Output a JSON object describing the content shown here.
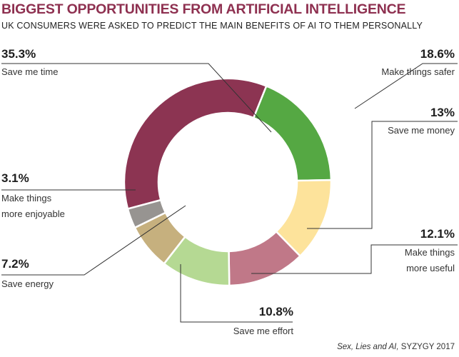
{
  "title": "BIGGEST OPPORTUNITIES FROM ARTIFICIAL INTELLIGENCE",
  "subtitle": "UK CONSUMERS WERE ASKED TO PREDICT THE MAIN BENEFITS OF AI TO THEM PERSONALLY",
  "source_italic": "Sex, Lies and AI,",
  "source_rest": " SYZYGY 2017",
  "chart_data": {
    "type": "pie",
    "donut": true,
    "unit": "%",
    "slices": [
      {
        "label": "Save me time",
        "value": 35.3,
        "display": "35.3%",
        "color": "#8c3452"
      },
      {
        "label": "Make things safer",
        "value": 18.6,
        "display": "18.6%",
        "color": "#55a843"
      },
      {
        "label": "Save me money",
        "value": 13,
        "display": "13%",
        "color": "#fde39b"
      },
      {
        "label": "Make things more useful",
        "value": 12.1,
        "display": "12.1%",
        "color": "#c07888"
      },
      {
        "label": "Save me effort",
        "value": 10.8,
        "display": "10.8%",
        "color": "#b5d993"
      },
      {
        "label": "Save energy",
        "value": 7.2,
        "display": "7.2%",
        "color": "#c6b07e"
      },
      {
        "label": "Make things more enjoyable",
        "value": 3.1,
        "display": "3.1%",
        "color": "#979491"
      }
    ]
  },
  "labels": {
    "time": {
      "pct": "35.3%",
      "line1": "Save me time"
    },
    "safer": {
      "pct": "18.6%",
      "line1": "Make things safer"
    },
    "money": {
      "pct": "13%",
      "line1": "Save me money"
    },
    "useful": {
      "pct": "12.1%",
      "line1": "Make things",
      "line2": "more useful"
    },
    "effort": {
      "pct": "10.8%",
      "line1": "Save me effort"
    },
    "energy": {
      "pct": "7.2%",
      "line1": "Save energy"
    },
    "enjoy": {
      "pct": "3.1%",
      "line1": "Make things",
      "line2": "more enjoyable"
    }
  }
}
